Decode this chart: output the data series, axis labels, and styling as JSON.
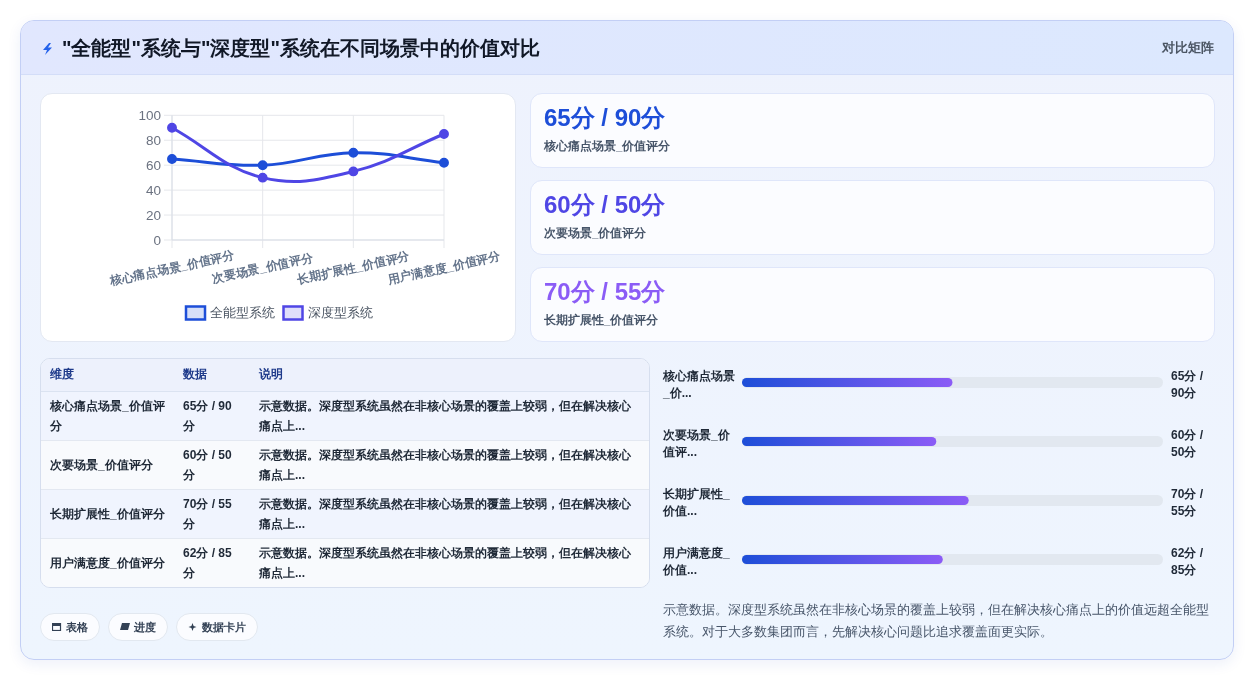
{
  "chart_data": [
    {
      "type": "other",
      "title": "\"全能型\"系统与\"深度型\"系统在不同场景中的价值对比",
      "subtitle": "对比矩阵"
    },
    {
      "type": "line",
      "categories": [
        "核心痛点场景_价值评分",
        "次要场景_价值评分",
        "长期扩展性_价值评分",
        "用户满意度_价值评分"
      ],
      "series": [
        {
          "name": "全能型系统",
          "color": "#1d4ed8",
          "values": [
            65,
            60,
            70,
            62
          ]
        },
        {
          "name": "深度型系统",
          "color": "#4f46e5",
          "values": [
            90,
            50,
            55,
            85
          ]
        }
      ],
      "ylim": [
        0,
        100
      ],
      "yticks": [
        0,
        20,
        40,
        60,
        80,
        100
      ],
      "grid": true,
      "legend": "bottom",
      "marker": "circle"
    },
    {
      "type": "other",
      "categories": [
        "核心痛点场景_价值评分",
        "次要场景_价值评分",
        "长期扩展性_价值评分"
      ],
      "value_labels": [
        "65分 / 90分",
        "60分 / 50分",
        "70分 / 55分"
      ]
    },
    {
      "type": "other",
      "categories": [
        "维度",
        "数据",
        "说明"
      ],
      "cell_labels": [
        [
          "核心痛点场景_价值评分",
          "65分 / 90分",
          "示意数据。深度型系统虽然在非核心场景的覆盖上较弱，但在解决核心痛点上..."
        ],
        [
          "次要场景_价值评分",
          "60分 / 50分",
          "示意数据。深度型系统虽然在非核心场景的覆盖上较弱，但在解决核心痛点上..."
        ],
        [
          "长期扩展性_价值评分",
          "70分 / 55分",
          "示意数据。深度型系统虽然在非核心场景的覆盖上较弱，但在解决核心痛点上..."
        ],
        [
          "用户满意度_价值评分",
          "62分 / 85分",
          "示意数据。深度型系统虽然在非核心场景的覆盖上较弱，但在解决核心痛点上..."
        ]
      ]
    },
    {
      "type": "bar",
      "orientation": "horizontal",
      "categories": [
        "核心痛点场景_价...",
        "次要场景_价值评...",
        "长期扩展性_价值...",
        "用户满意度_价值..."
      ],
      "values": [
        65,
        60,
        70,
        62
      ],
      "xlim": [
        0,
        130
      ],
      "value_labels": [
        "65分 / 90分",
        "60分 / 50分",
        "70分 / 55分",
        "62分 / 85分"
      ],
      "annotations": [
        "示意数据。深度型系统虽然在非核心场景的覆盖上较弱，但在解决核心痛点上的价值远超全能型系统。对于大多数集团而言，先解决核心问题比追求覆盖面更实际。"
      ]
    },
    {
      "type": "other",
      "categories": [
        "表格",
        "进度",
        "数据卡片"
      ]
    }
  ]
}
